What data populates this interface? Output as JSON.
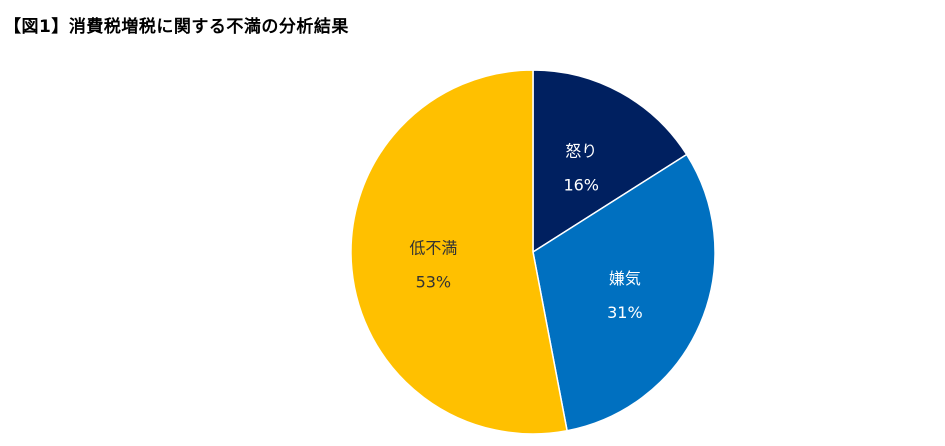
{
  "chart_data": {
    "type": "pie",
    "title": "【図1】消費税増税に関する不満の分析結果",
    "slices": [
      {
        "label": "怒り",
        "value": 16,
        "value_label": "16%",
        "color": "#002060"
      },
      {
        "label": "嫌気",
        "value": 31,
        "value_label": "31%",
        "color": "#0070C0"
      },
      {
        "label": "低不満",
        "value": 53,
        "value_label": "53%",
        "color": "#FFC000"
      }
    ],
    "start_angle_deg": 0,
    "direction": "clockwise",
    "legend": "none"
  }
}
